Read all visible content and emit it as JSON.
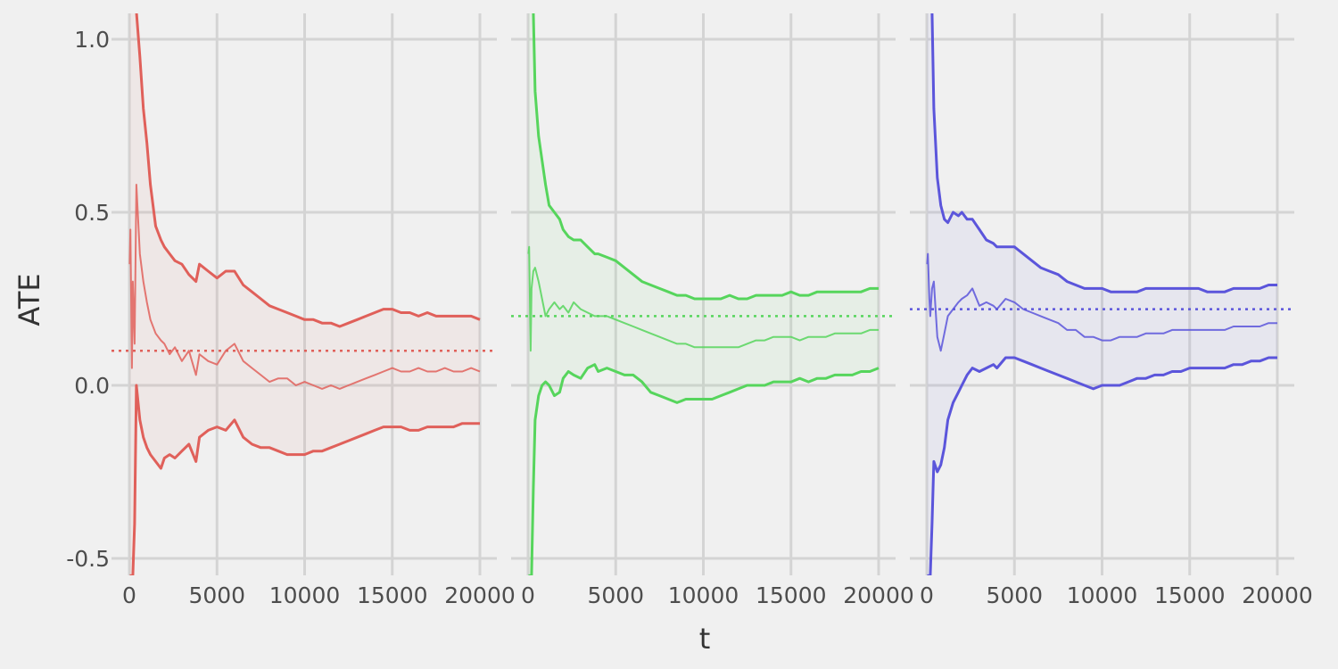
{
  "chart_data": {
    "type": "line",
    "xlabel": "t",
    "ylabel": "ATE",
    "xlim": [
      0,
      21000
    ],
    "ylim": [
      -0.55,
      1.08
    ],
    "x_ticks": [
      0,
      5000,
      10000,
      15000,
      20000
    ],
    "y_ticks": [
      -0.5,
      0.0,
      0.5,
      1.0
    ],
    "x_tick_labels": [
      "0",
      "5000",
      "10000",
      "15000",
      "20000"
    ],
    "y_tick_labels": [
      "-0.5",
      "0.0",
      "0.5",
      "1.0"
    ],
    "grid": true,
    "panels": [
      {
        "color": "#e0605a",
        "true_ate": 0.1,
        "x": [
          20,
          60,
          150,
          200,
          300,
          400,
          600,
          800,
          1000,
          1200,
          1500,
          1800,
          2000,
          2300,
          2600,
          3000,
          3400,
          3800,
          4000,
          4500,
          5000,
          5500,
          6000,
          6500,
          7000,
          7500,
          8000,
          8500,
          9000,
          9500,
          10000,
          10500,
          11000,
          11500,
          12000,
          12500,
          13000,
          13500,
          14000,
          14500,
          15000,
          15500,
          16000,
          16500,
          17000,
          17500,
          18000,
          18500,
          19000,
          19500,
          20000
        ],
        "estimate": [
          0.35,
          0.45,
          0.05,
          0.3,
          0.12,
          0.58,
          0.38,
          0.3,
          0.24,
          0.19,
          0.15,
          0.13,
          0.12,
          0.09,
          0.11,
          0.07,
          0.1,
          0.03,
          0.09,
          0.07,
          0.06,
          0.1,
          0.12,
          0.07,
          0.05,
          0.03,
          0.01,
          0.02,
          0.02,
          0.0,
          0.01,
          0.0,
          -0.01,
          0.0,
          -0.01,
          0.0,
          0.01,
          0.02,
          0.03,
          0.04,
          0.05,
          0.04,
          0.04,
          0.05,
          0.04,
          0.04,
          0.05,
          0.04,
          0.04,
          0.05,
          0.04
        ],
        "upper": [
          1.08,
          1.08,
          1.08,
          1.08,
          1.08,
          1.08,
          0.95,
          0.8,
          0.7,
          0.58,
          0.46,
          0.42,
          0.4,
          0.38,
          0.36,
          0.35,
          0.32,
          0.3,
          0.35,
          0.33,
          0.31,
          0.33,
          0.33,
          0.29,
          0.27,
          0.25,
          0.23,
          0.22,
          0.21,
          0.2,
          0.19,
          0.19,
          0.18,
          0.18,
          0.17,
          0.18,
          0.19,
          0.2,
          0.21,
          0.22,
          0.22,
          0.21,
          0.21,
          0.2,
          0.21,
          0.2,
          0.2,
          0.2,
          0.2,
          0.2,
          0.19
        ],
        "lower": [
          -0.55,
          -0.55,
          -0.55,
          -0.55,
          -0.4,
          0.0,
          -0.1,
          -0.15,
          -0.18,
          -0.2,
          -0.22,
          -0.24,
          -0.21,
          -0.2,
          -0.21,
          -0.19,
          -0.17,
          -0.22,
          -0.15,
          -0.13,
          -0.12,
          -0.13,
          -0.1,
          -0.15,
          -0.17,
          -0.18,
          -0.18,
          -0.19,
          -0.2,
          -0.2,
          -0.2,
          -0.19,
          -0.19,
          -0.18,
          -0.17,
          -0.16,
          -0.15,
          -0.14,
          -0.13,
          -0.12,
          -0.12,
          -0.12,
          -0.13,
          -0.13,
          -0.12,
          -0.12,
          -0.12,
          -0.12,
          -0.11,
          -0.11,
          -0.11
        ]
      },
      {
        "color": "#56d55c",
        "true_ate": 0.2,
        "x": [
          20,
          60,
          150,
          200,
          300,
          400,
          600,
          800,
          1000,
          1200,
          1500,
          1800,
          2000,
          2300,
          2600,
          3000,
          3400,
          3800,
          4000,
          4500,
          5000,
          5500,
          6000,
          6500,
          7000,
          7500,
          8000,
          8500,
          9000,
          9500,
          10000,
          10500,
          11000,
          11500,
          12000,
          12500,
          13000,
          13500,
          14000,
          14500,
          15000,
          15500,
          16000,
          16500,
          17000,
          17500,
          18000,
          18500,
          19000,
          19500,
          20000
        ],
        "estimate": [
          0.38,
          0.4,
          0.1,
          0.28,
          0.33,
          0.34,
          0.3,
          0.25,
          0.2,
          0.22,
          0.24,
          0.22,
          0.23,
          0.21,
          0.24,
          0.22,
          0.21,
          0.2,
          0.2,
          0.2,
          0.19,
          0.18,
          0.17,
          0.16,
          0.15,
          0.14,
          0.13,
          0.12,
          0.12,
          0.11,
          0.11,
          0.11,
          0.11,
          0.11,
          0.11,
          0.12,
          0.13,
          0.13,
          0.14,
          0.14,
          0.14,
          0.13,
          0.14,
          0.14,
          0.14,
          0.15,
          0.15,
          0.15,
          0.15,
          0.16,
          0.16
        ],
        "upper": [
          1.08,
          1.08,
          1.08,
          1.08,
          1.08,
          0.85,
          0.72,
          0.65,
          0.58,
          0.52,
          0.5,
          0.48,
          0.45,
          0.43,
          0.42,
          0.42,
          0.4,
          0.38,
          0.38,
          0.37,
          0.36,
          0.34,
          0.32,
          0.3,
          0.29,
          0.28,
          0.27,
          0.26,
          0.26,
          0.25,
          0.25,
          0.25,
          0.25,
          0.26,
          0.25,
          0.25,
          0.26,
          0.26,
          0.26,
          0.26,
          0.27,
          0.26,
          0.26,
          0.27,
          0.27,
          0.27,
          0.27,
          0.27,
          0.27,
          0.28,
          0.28
        ],
        "lower": [
          -0.55,
          -0.55,
          -0.55,
          -0.55,
          -0.3,
          -0.1,
          -0.03,
          0.0,
          0.01,
          0.0,
          -0.03,
          -0.02,
          0.02,
          0.04,
          0.03,
          0.02,
          0.05,
          0.06,
          0.04,
          0.05,
          0.04,
          0.03,
          0.03,
          0.01,
          -0.02,
          -0.03,
          -0.04,
          -0.05,
          -0.04,
          -0.04,
          -0.04,
          -0.04,
          -0.03,
          -0.02,
          -0.01,
          0.0,
          0.0,
          0.0,
          0.01,
          0.01,
          0.01,
          0.02,
          0.01,
          0.02,
          0.02,
          0.03,
          0.03,
          0.03,
          0.04,
          0.04,
          0.05
        ]
      },
      {
        "color": "#5b55db",
        "true_ate": 0.22,
        "x": [
          20,
          60,
          150,
          200,
          300,
          400,
          600,
          800,
          1000,
          1200,
          1500,
          1800,
          2000,
          2300,
          2600,
          3000,
          3400,
          3800,
          4000,
          4500,
          5000,
          5500,
          6000,
          6500,
          7000,
          7500,
          8000,
          8500,
          9000,
          9500,
          10000,
          10500,
          11000,
          11500,
          12000,
          12500,
          13000,
          13500,
          14000,
          14500,
          15000,
          15500,
          16000,
          16500,
          17000,
          17500,
          18000,
          18500,
          19000,
          19500,
          20000
        ],
        "estimate": [
          0.35,
          0.38,
          0.25,
          0.2,
          0.28,
          0.3,
          0.14,
          0.1,
          0.15,
          0.2,
          0.22,
          0.24,
          0.25,
          0.26,
          0.28,
          0.23,
          0.24,
          0.23,
          0.22,
          0.25,
          0.24,
          0.22,
          0.21,
          0.2,
          0.19,
          0.18,
          0.16,
          0.16,
          0.14,
          0.14,
          0.13,
          0.13,
          0.14,
          0.14,
          0.14,
          0.15,
          0.15,
          0.15,
          0.16,
          0.16,
          0.16,
          0.16,
          0.16,
          0.16,
          0.16,
          0.17,
          0.17,
          0.17,
          0.17,
          0.18,
          0.18
        ],
        "upper": [
          1.08,
          1.08,
          1.08,
          1.08,
          1.08,
          0.8,
          0.6,
          0.52,
          0.48,
          0.47,
          0.5,
          0.49,
          0.5,
          0.48,
          0.48,
          0.45,
          0.42,
          0.41,
          0.4,
          0.4,
          0.4,
          0.38,
          0.36,
          0.34,
          0.33,
          0.32,
          0.3,
          0.29,
          0.28,
          0.28,
          0.28,
          0.27,
          0.27,
          0.27,
          0.27,
          0.28,
          0.28,
          0.28,
          0.28,
          0.28,
          0.28,
          0.28,
          0.27,
          0.27,
          0.27,
          0.28,
          0.28,
          0.28,
          0.28,
          0.29,
          0.29
        ],
        "lower": [
          -0.55,
          -0.55,
          -0.55,
          -0.55,
          -0.4,
          -0.22,
          -0.25,
          -0.23,
          -0.18,
          -0.1,
          -0.05,
          -0.02,
          0.0,
          0.03,
          0.05,
          0.04,
          0.05,
          0.06,
          0.05,
          0.08,
          0.08,
          0.07,
          0.06,
          0.05,
          0.04,
          0.03,
          0.02,
          0.01,
          0.0,
          -0.01,
          0.0,
          0.0,
          0.0,
          0.01,
          0.02,
          0.02,
          0.03,
          0.03,
          0.04,
          0.04,
          0.05,
          0.05,
          0.05,
          0.05,
          0.05,
          0.06,
          0.06,
          0.07,
          0.07,
          0.08,
          0.08
        ]
      }
    ]
  }
}
